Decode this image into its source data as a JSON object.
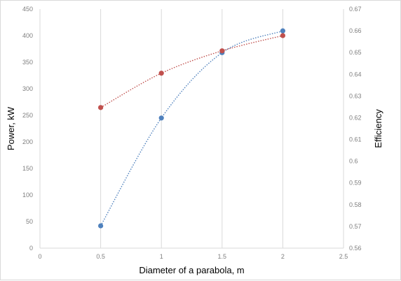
{
  "chart_data": {
    "type": "scatter",
    "title": "",
    "xlabel": "Diameter of a parabola, m",
    "ylabel": "Power, kW",
    "y2label": "Efficiency",
    "xlim": [
      0,
      2.5
    ],
    "ylim": [
      0,
      450
    ],
    "y2lim": [
      0.56,
      0.67
    ],
    "x_ticks": [
      "0",
      "0.5",
      "1",
      "1.5",
      "2",
      "2.5"
    ],
    "y_ticks": [
      "0",
      "50",
      "100",
      "150",
      "200",
      "250",
      "300",
      "350",
      "400",
      "450"
    ],
    "y2_ticks": [
      "0.56",
      "0.57",
      "0.58",
      "0.59",
      "0.6",
      "0.61",
      "0.62",
      "0.63",
      "0.64",
      "0.65",
      "0.66",
      "0.67"
    ],
    "grid": "vertical",
    "legend": "none",
    "series": [
      {
        "axis": "left",
        "color": "#4f81bd",
        "style": "markers with dotted smooth trendline",
        "x": [
          0.5,
          1,
          1.5,
          2
        ],
        "y": [
          42,
          245,
          368,
          409
        ]
      },
      {
        "axis": "right",
        "color": "#c0504d",
        "style": "markers with dotted smooth trendline",
        "x": [
          0.5,
          1,
          1.5,
          2
        ],
        "y": [
          0.6247,
          0.6405,
          0.6508,
          0.6578
        ]
      }
    ]
  }
}
